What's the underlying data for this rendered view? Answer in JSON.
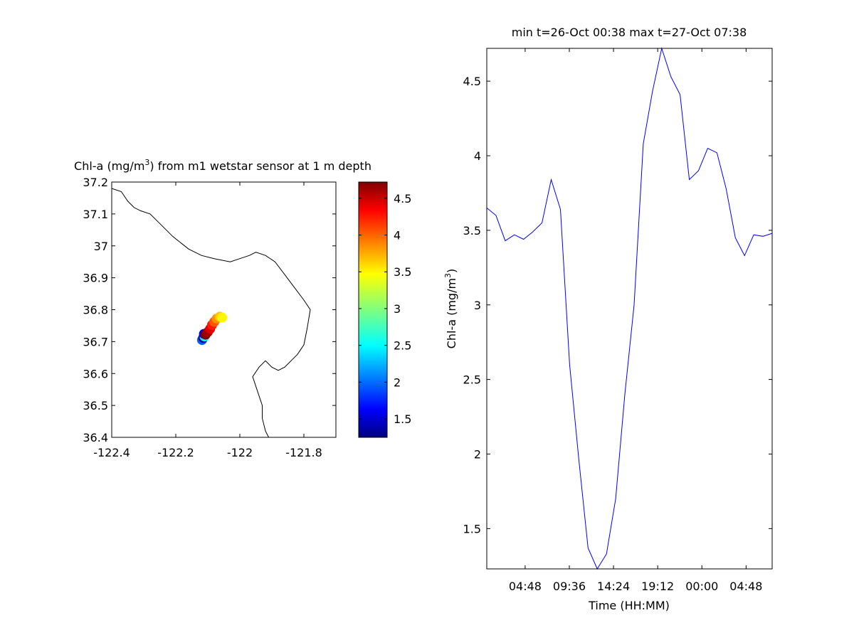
{
  "chart_data": [
    {
      "type": "scatter",
      "title_prefix": "Chl-a (mg/m",
      "title_sup": "3",
      "title_suffix": ") from m1 wetstar sensor at 1 m depth",
      "xlim": [
        -122.4,
        -121.7
      ],
      "ylim": [
        36.4,
        37.2
      ],
      "xticks": [
        -122.4,
        -122.2,
        -122,
        -121.8
      ],
      "xtick_labels": [
        "-122.4",
        "-122.2",
        "-122",
        "-121.8"
      ],
      "yticks": [
        36.4,
        36.5,
        36.6,
        36.7,
        36.8,
        36.9,
        37,
        37.1,
        37.2
      ],
      "ytick_labels": [
        "36.4",
        "36.5",
        "36.6",
        "36.7",
        "36.8",
        "36.9",
        "37",
        "37.1",
        "37.2"
      ],
      "coastline": [
        [
          -122.4,
          37.18
        ],
        [
          -122.37,
          37.17
        ],
        [
          -122.35,
          37.14
        ],
        [
          -122.33,
          37.12
        ],
        [
          -122.31,
          37.11
        ],
        [
          -122.28,
          37.1
        ],
        [
          -122.25,
          37.07
        ],
        [
          -122.21,
          37.03
        ],
        [
          -122.16,
          36.99
        ],
        [
          -122.12,
          36.97
        ],
        [
          -122.08,
          36.96
        ],
        [
          -122.03,
          36.95
        ],
        [
          -122.0,
          36.96
        ],
        [
          -121.97,
          36.97
        ],
        [
          -121.95,
          36.98
        ],
        [
          -121.92,
          36.97
        ],
        [
          -121.89,
          36.95
        ],
        [
          -121.86,
          36.91
        ],
        [
          -121.83,
          36.87
        ],
        [
          -121.8,
          36.83
        ],
        [
          -121.78,
          36.8
        ],
        [
          -121.79,
          36.74
        ],
        [
          -121.8,
          36.69
        ],
        [
          -121.82,
          36.66
        ],
        [
          -121.84,
          36.64
        ],
        [
          -121.86,
          36.62
        ],
        [
          -121.88,
          36.61
        ],
        [
          -121.9,
          36.62
        ],
        [
          -121.92,
          36.64
        ],
        [
          -121.94,
          36.62
        ],
        [
          -121.96,
          36.59
        ],
        [
          -121.95,
          36.56
        ],
        [
          -121.94,
          36.53
        ],
        [
          -121.93,
          36.5
        ],
        [
          -121.93,
          36.46
        ],
        [
          -121.92,
          36.42
        ],
        [
          -121.91,
          36.4
        ]
      ],
      "points": [
        {
          "lon": -122.118,
          "lat": 36.705,
          "value": 2.0
        },
        {
          "lon": -122.114,
          "lat": 36.712,
          "value": 1.3
        },
        {
          "lon": -122.11,
          "lat": 36.716,
          "value": 2.6
        },
        {
          "lon": -122.112,
          "lat": 36.724,
          "value": 1.6
        },
        {
          "lon": -122.107,
          "lat": 36.722,
          "value": 4.7
        },
        {
          "lon": -122.1,
          "lat": 36.73,
          "value": 4.6
        },
        {
          "lon": -122.093,
          "lat": 36.74,
          "value": 4.4
        },
        {
          "lon": -122.087,
          "lat": 36.752,
          "value": 4.2
        },
        {
          "lon": -122.08,
          "lat": 36.762,
          "value": 4.0
        },
        {
          "lon": -122.072,
          "lat": 36.772,
          "value": 3.8
        },
        {
          "lon": -122.063,
          "lat": 36.778,
          "value": 3.6
        },
        {
          "lon": -122.055,
          "lat": 36.775,
          "value": 3.45
        }
      ],
      "colorbar": {
        "range": [
          1.25,
          4.72
        ],
        "ticks": [
          1.5,
          2,
          2.5,
          3,
          3.5,
          4,
          4.5
        ],
        "tick_labels": [
          "1.5",
          "2",
          "2.5",
          "3",
          "3.5",
          "4",
          "4.5"
        ],
        "colormap": "jet"
      },
      "colors": {
        "coastline": "#000000",
        "axes": "#000000"
      }
    },
    {
      "type": "line",
      "title": "min t=26-Oct 00:38 max t=27-Oct 07:38",
      "xlabel": "Time (HH:MM)",
      "ylabel_prefix": "Chl-a (mg/m",
      "ylabel_sup": "3",
      "ylabel_suffix": ")",
      "xlim": [
        0.6333,
        31.6333
      ],
      "ylim": [
        1.23,
        4.72
      ],
      "xticks": [
        4.8,
        9.6,
        14.4,
        19.2,
        24.0,
        28.8
      ],
      "xtick_labels": [
        "04:48",
        "09:36",
        "14:24",
        "19:12",
        "00:00",
        "04:48"
      ],
      "yticks": [
        1.5,
        2,
        2.5,
        3,
        3.5,
        4,
        4.5
      ],
      "ytick_labels": [
        "1.5",
        "2",
        "2.5",
        "3",
        "3.5",
        "4",
        "4.5"
      ],
      "series": [
        {
          "color": "#0000ff",
          "x": [
            0.633,
            1.633,
            2.633,
            3.633,
            4.633,
            5.633,
            6.633,
            7.633,
            8.633,
            9.633,
            10.633,
            11.633,
            12.633,
            13.633,
            14.633,
            15.633,
            16.633,
            17.633,
            18.633,
            19.633,
            20.633,
            21.633,
            22.633,
            23.633,
            24.633,
            25.633,
            26.633,
            27.633,
            28.633,
            29.633,
            30.633,
            31.633
          ],
          "values": [
            3.65,
            3.6,
            3.43,
            3.47,
            3.44,
            3.49,
            3.55,
            3.84,
            3.64,
            2.6,
            1.96,
            1.37,
            1.23,
            1.33,
            1.7,
            2.4,
            3.0,
            4.08,
            4.43,
            4.72,
            4.53,
            4.41,
            3.84,
            3.9,
            4.05,
            4.02,
            3.78,
            3.45,
            3.33,
            3.47,
            3.46,
            3.48
          ]
        }
      ]
    }
  ]
}
